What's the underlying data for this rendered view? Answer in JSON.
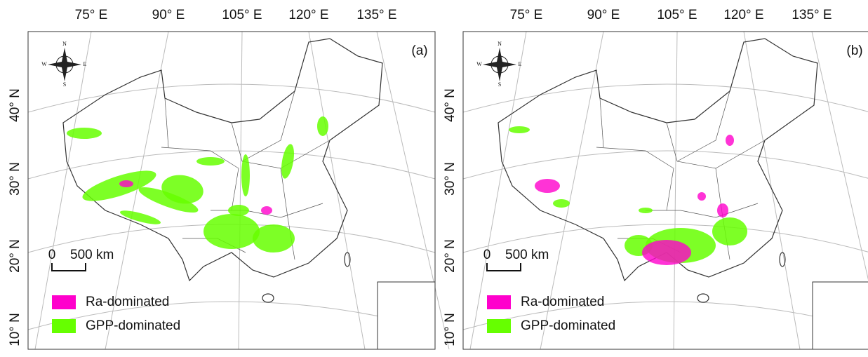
{
  "panels": [
    {
      "label": "(a)",
      "longitude_labels": [
        "75° E",
        "90° E",
        "105° E",
        "120° E",
        "135° E"
      ],
      "latitude_labels": [
        "40° N",
        "30° N",
        "20° N",
        "10° N"
      ],
      "compass": {
        "north": "N",
        "south": "S",
        "east": "E",
        "west": "W"
      },
      "scale_bar": {
        "start": "0",
        "end": "500 km"
      },
      "legend": [
        {
          "label": "Ra-dominated",
          "color": "#ff00cc"
        },
        {
          "label": "GPP-dominated",
          "color": "#66ff00"
        }
      ]
    },
    {
      "label": "(b)",
      "longitude_labels": [
        "75° E",
        "90° E",
        "105° E",
        "120° E",
        "135° E"
      ],
      "latitude_labels": [
        "40° N",
        "30° N",
        "20° N",
        "10° N"
      ],
      "compass": {
        "north": "N",
        "south": "S",
        "east": "E",
        "west": "W"
      },
      "scale_bar": {
        "start": "0",
        "end": "500 km"
      },
      "legend": [
        {
          "label": "Ra-dominated",
          "color": "#ff00cc"
        },
        {
          "label": "GPP-dominated",
          "color": "#66ff00"
        }
      ]
    }
  ]
}
